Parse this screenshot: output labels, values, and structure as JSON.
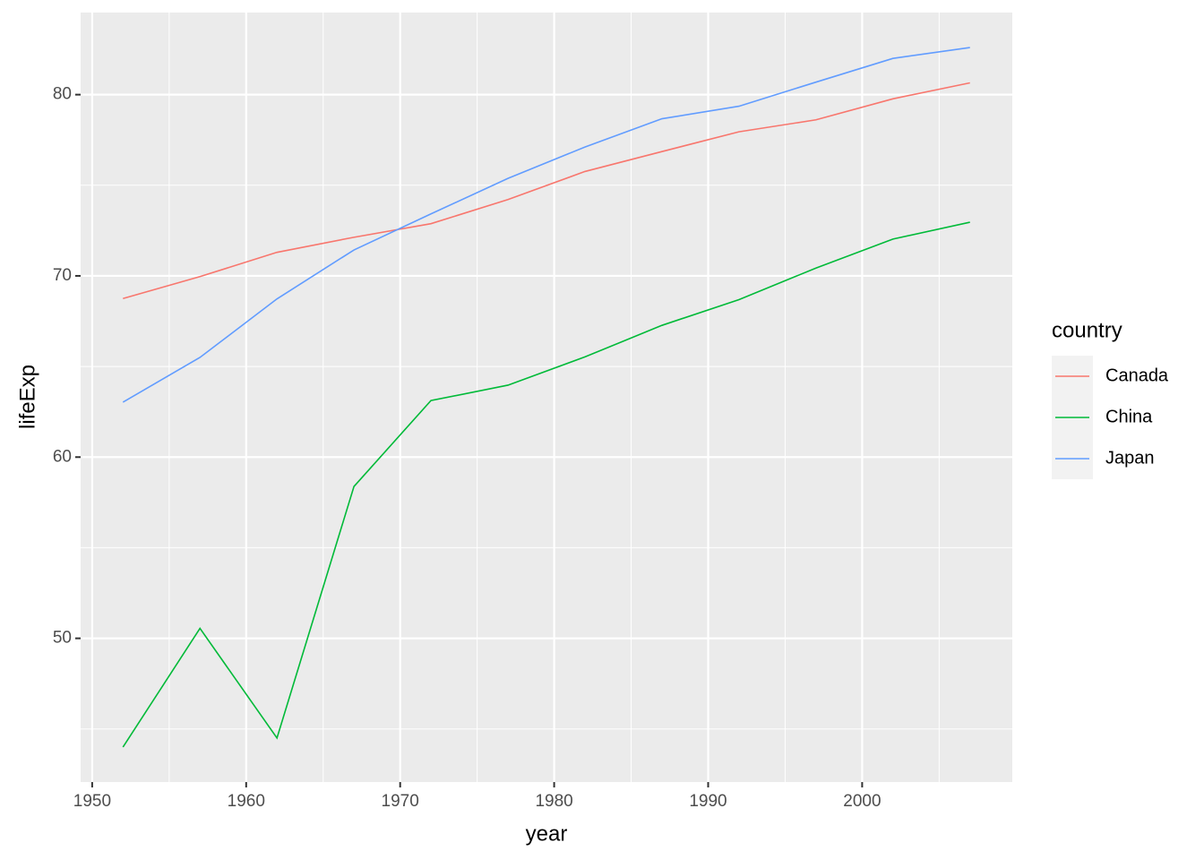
{
  "chart_data": {
    "type": "line",
    "x_label": "year",
    "y_label": "lifeExp",
    "legend_title": "country",
    "legend_position": "right",
    "grid": true,
    "x": [
      1952,
      1957,
      1962,
      1967,
      1972,
      1977,
      1982,
      1987,
      1992,
      1997,
      2002,
      2007
    ],
    "series": [
      {
        "name": "Canada",
        "color": "#F8766D",
        "values": [
          68.75,
          69.96,
          71.3,
          72.13,
          72.88,
          74.21,
          75.76,
          76.86,
          77.95,
          78.61,
          79.77,
          80.65
        ]
      },
      {
        "name": "China",
        "color": "#00BA38",
        "values": [
          44.0,
          50.55,
          44.5,
          58.38,
          63.12,
          63.97,
          65.53,
          67.27,
          68.69,
          70.43,
          72.03,
          72.96
        ]
      },
      {
        "name": "Japan",
        "color": "#619CFF",
        "values": [
          63.03,
          65.5,
          68.73,
          71.43,
          73.42,
          75.38,
          77.11,
          78.67,
          79.36,
          80.69,
          82.0,
          82.6
        ]
      }
    ],
    "xlim": [
      1949.25,
      2009.75
    ],
    "ylim": [
      42.07,
      84.53
    ],
    "xticks": [
      1950,
      1960,
      1970,
      1980,
      1990,
      2000
    ],
    "yticks": [
      50,
      60,
      70,
      80
    ]
  }
}
